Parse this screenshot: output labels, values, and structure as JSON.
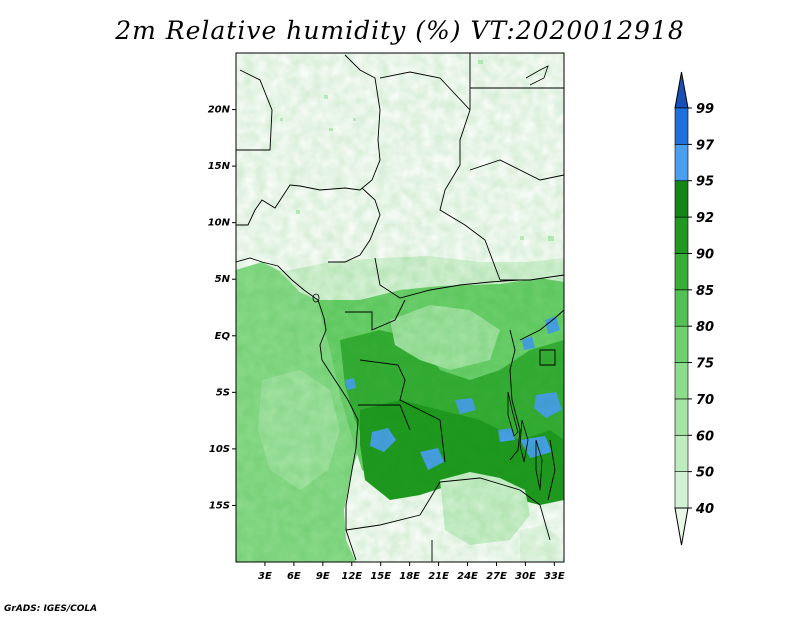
{
  "title": "2m Relative humidity (%) VT:2020012918",
  "credit": "GrADS: IGES/COLA",
  "map": {
    "lon_range": [
      0,
      34
    ],
    "lat_range": [
      -20,
      25
    ],
    "y_ticks": [
      {
        "lat": 20,
        "label": "20N"
      },
      {
        "lat": 15,
        "label": "15N"
      },
      {
        "lat": 10,
        "label": "10N"
      },
      {
        "lat": 5,
        "label": "5N"
      },
      {
        "lat": 0,
        "label": "EQ"
      },
      {
        "lat": -5,
        "label": "5S"
      },
      {
        "lat": -10,
        "label": "10S"
      },
      {
        "lat": -15,
        "label": "15S"
      }
    ],
    "x_ticks": [
      {
        "lon": 3,
        "label": "3E"
      },
      {
        "lon": 6,
        "label": "6E"
      },
      {
        "lon": 9,
        "label": "9E"
      },
      {
        "lon": 12,
        "label": "12E"
      },
      {
        "lon": 15,
        "label": "15E"
      },
      {
        "lon": 18,
        "label": "18E"
      },
      {
        "lon": 21,
        "label": "21E"
      },
      {
        "lon": 24,
        "label": "24E"
      },
      {
        "lon": 27,
        "label": "27E"
      },
      {
        "lon": 30,
        "label": "30E"
      },
      {
        "lon": 33,
        "label": "33E"
      }
    ]
  },
  "colorbar": {
    "levels": [
      "40",
      "50",
      "60",
      "70",
      "75",
      "80",
      "85",
      "90",
      "92",
      "95",
      "97",
      "99"
    ],
    "colors": [
      "#e8f8e8",
      "#d3f2d3",
      "#bfecbf",
      "#a6e4a6",
      "#8cdc8c",
      "#6fd06f",
      "#52c052",
      "#38ad38",
      "#219821",
      "#158515",
      "#4a9ef0",
      "#1f6fdc",
      "#1650b8"
    ]
  }
}
